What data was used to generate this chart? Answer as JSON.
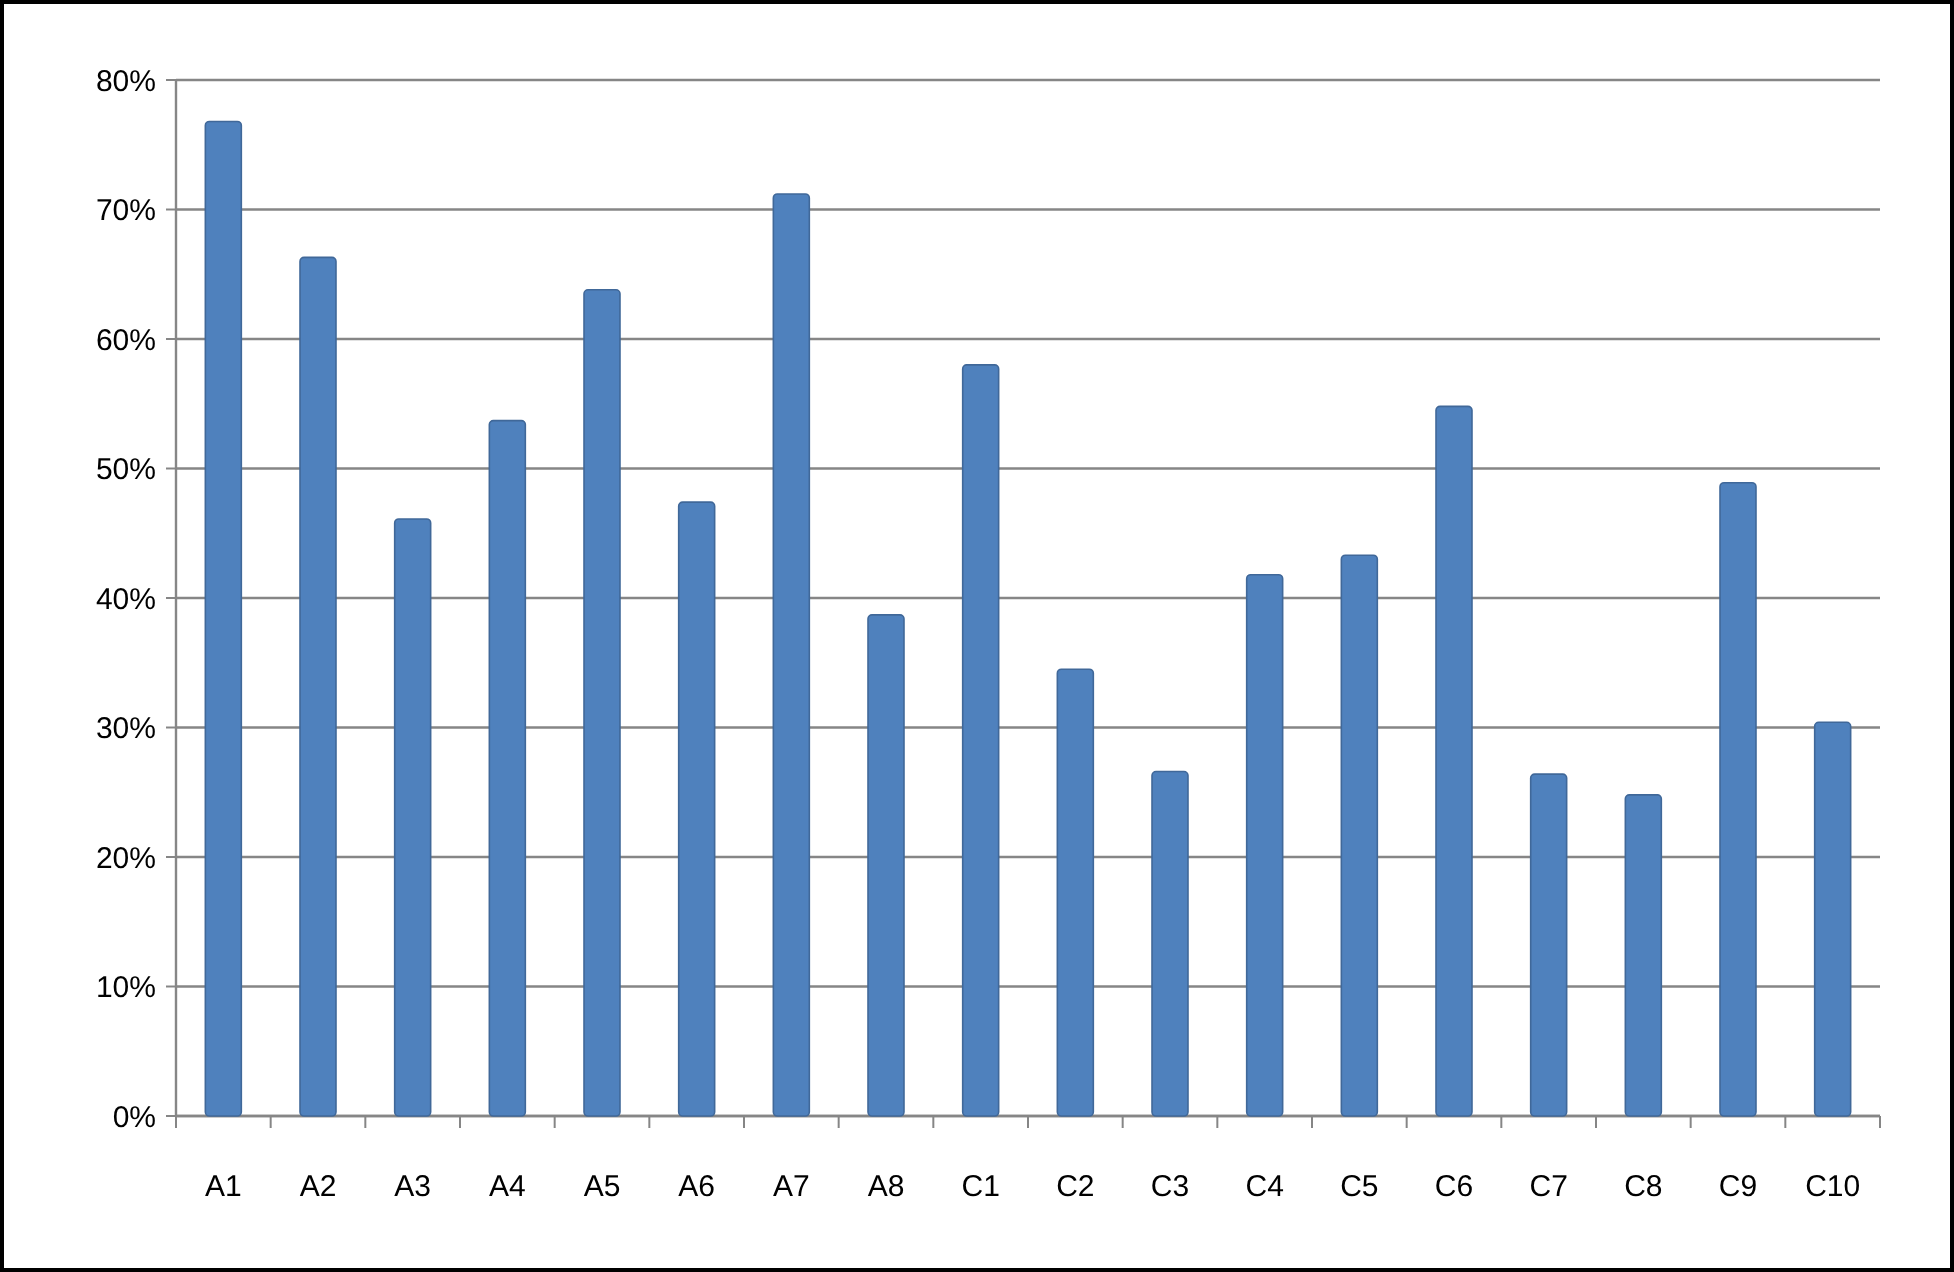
{
  "chart_data": {
    "type": "bar",
    "categories": [
      "A1",
      "A2",
      "A3",
      "A4",
      "A5",
      "A6",
      "A7",
      "A8",
      "C1",
      "C2",
      "C3",
      "C4",
      "C5",
      "C6",
      "C7",
      "C8",
      "C9",
      "C10"
    ],
    "values": [
      76.8,
      66.3,
      46.1,
      53.7,
      63.8,
      47.4,
      71.2,
      38.7,
      58.0,
      34.5,
      26.6,
      41.8,
      43.3,
      54.8,
      26.4,
      24.8,
      48.9,
      30.4
    ],
    "color": "#4f81bd",
    "ylim": [
      0,
      80
    ],
    "yticks": [
      {
        "value": 0,
        "label": "0%"
      },
      {
        "value": 10,
        "label": "10%"
      },
      {
        "value": 20,
        "label": "20%"
      },
      {
        "value": 30,
        "label": "30%"
      },
      {
        "value": 40,
        "label": "40%"
      },
      {
        "value": 50,
        "label": "50%"
      },
      {
        "value": 60,
        "label": "60%"
      },
      {
        "value": 70,
        "label": "70%"
      },
      {
        "value": 80,
        "label": "80%"
      }
    ],
    "grid": true
  }
}
